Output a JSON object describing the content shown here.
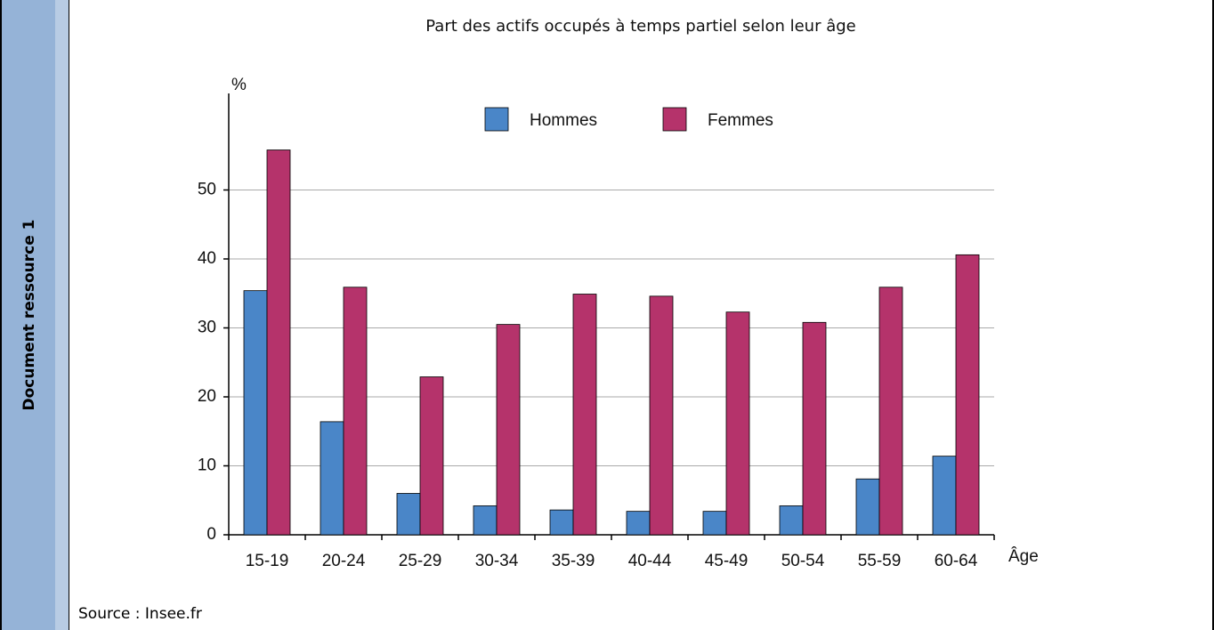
{
  "sidebar": "Document ressource 1",
  "source": "Source : Insee.fr",
  "chart_data": {
    "type": "bar",
    "title": "Part des actifs occupés à temps partiel selon leur âge",
    "y_label": "%",
    "x_label": "Âge",
    "categories": [
      "15-19",
      "20-24",
      "25-29",
      "30-34",
      "35-39",
      "40-44",
      "45-49",
      "50-54",
      "55-59",
      "60-64"
    ],
    "series": [
      {
        "name": "Hommes",
        "color": "#4a86c8",
        "values": [
          35.4,
          16.4,
          6.0,
          4.2,
          3.6,
          3.4,
          3.4,
          4.2,
          8.1,
          11.4
        ]
      },
      {
        "name": "Femmes",
        "color": "#b5336b",
        "values": [
          55.8,
          35.9,
          22.9,
          30.5,
          34.9,
          34.6,
          32.3,
          30.8,
          35.9,
          40.6
        ]
      }
    ],
    "ylim": [
      0,
      64
    ],
    "yticks": [
      0,
      10,
      20,
      30,
      40,
      50
    ],
    "grid": true,
    "legend": "top"
  }
}
